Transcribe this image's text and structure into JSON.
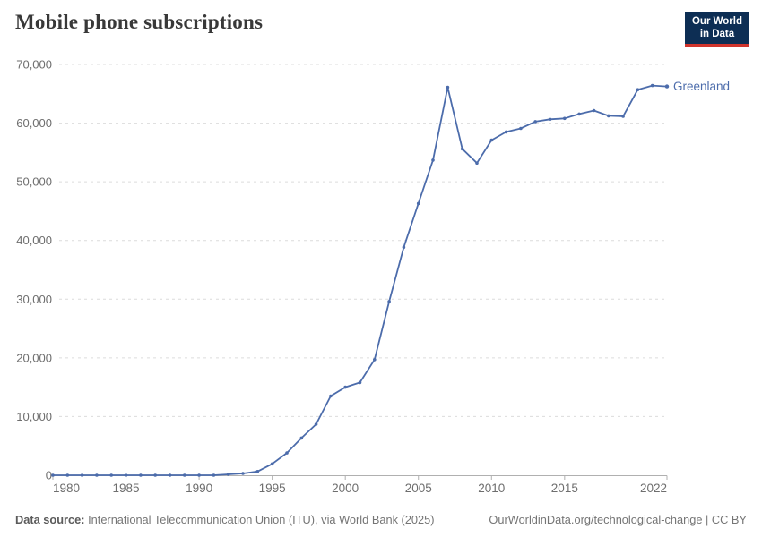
{
  "header": {
    "title": "Mobile phone subscriptions"
  },
  "logo": {
    "line1": "Our World",
    "line2": "in Data",
    "bg_color": "#0d2e54",
    "accent_color": "#d0342c"
  },
  "footer": {
    "source_label": "Data source:",
    "source_text": " International Telecommunication Union (ITU), via World Bank (2025)",
    "credit": "OurWorldinData.org/technological-change | CC BY"
  },
  "chart_data": {
    "type": "line",
    "title": "Mobile phone subscriptions",
    "xlabel": "",
    "ylabel": "",
    "xlim": [
      1980,
      2022
    ],
    "ylim": [
      0,
      70000
    ],
    "grid": "horizontal-dashed",
    "legend_position": "end-of-line-label",
    "line_color": "#4c6cab",
    "axis_color": "#b0b0b0",
    "grid_color": "#dcdcdc",
    "tick_label_color": "#6e6e6e",
    "xticks": [
      1980,
      1985,
      1990,
      1995,
      2000,
      2005,
      2010,
      2015,
      2022
    ],
    "yticks": [
      0,
      10000,
      20000,
      30000,
      40000,
      50000,
      60000,
      70000
    ],
    "x": [
      1980,
      1981,
      1982,
      1983,
      1984,
      1985,
      1986,
      1987,
      1988,
      1989,
      1990,
      1991,
      1992,
      1993,
      1994,
      1995,
      1996,
      1997,
      1998,
      1999,
      2000,
      2001,
      2002,
      2003,
      2004,
      2005,
      2006,
      2007,
      2008,
      2009,
      2010,
      2011,
      2012,
      2013,
      2014,
      2015,
      2016,
      2017,
      2018,
      2019,
      2020,
      2021,
      2022
    ],
    "series": [
      {
        "name": "Greenland",
        "values": [
          0,
          0,
          0,
          0,
          0,
          0,
          0,
          0,
          0,
          0,
          0,
          0,
          150,
          310,
          640,
          1930,
          3800,
          6350,
          8700,
          13500,
          15000,
          15800,
          19700,
          29600,
          38850,
          46300,
          53700,
          66100,
          55600,
          53200,
          57100,
          58500,
          59100,
          60250,
          60650,
          60800,
          61550,
          62150,
          61250,
          61150,
          65700,
          66400,
          66250
        ]
      }
    ]
  }
}
